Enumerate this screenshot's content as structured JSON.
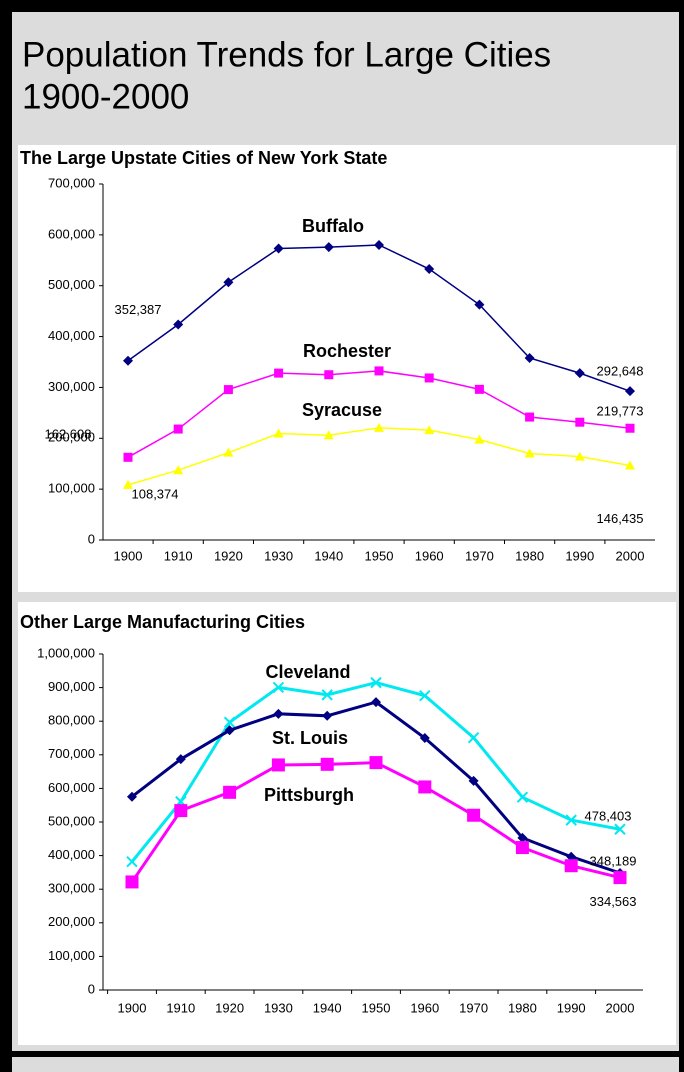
{
  "title_lines": [
    "Population Trends for Large Cities",
    "1900-2000"
  ],
  "chart_data": [
    {
      "type": "line",
      "title": "The Large Upstate Cities of New York State",
      "categories": [
        "1900",
        "1910",
        "1920",
        "1930",
        "1940",
        "1950",
        "1960",
        "1970",
        "1980",
        "1990",
        "2000"
      ],
      "ylim": [
        0,
        700000
      ],
      "yticks": [
        0,
        {
          "value": 100000,
          "label": "100,000"
        },
        {
          "value": 200000,
          "label": "200,000"
        },
        {
          "value": 300000,
          "label": "300,000"
        },
        {
          "value": 400000,
          "label": "400,000"
        },
        {
          "value": 500000,
          "label": "500,000"
        },
        {
          "value": 600000,
          "label": "600,000"
        },
        {
          "value": 700000,
          "label": "700,000"
        }
      ],
      "series": [
        {
          "name": "Buffalo",
          "color": "#000080",
          "marker": "diamond",
          "values": [
            352387,
            423715,
            506775,
            573076,
            575901,
            580132,
            532759,
            462768,
            357870,
            328123,
            292648
          ],
          "value_labels": [
            "352,387",
            null,
            null,
            null,
            null,
            null,
            null,
            null,
            null,
            null,
            "292,648"
          ]
        },
        {
          "name": "Rochester",
          "color": "#ff00ff",
          "marker": "square",
          "values": [
            162608,
            218149,
            295750,
            328132,
            324975,
            332488,
            318611,
            296233,
            241741,
            231636,
            219773
          ],
          "value_labels": [
            "162,608",
            null,
            null,
            null,
            null,
            null,
            null,
            null,
            null,
            null,
            "219,773"
          ]
        },
        {
          "name": "Syracuse",
          "color": "#ffff00",
          "marker": "triangle",
          "values": [
            108374,
            137249,
            171717,
            209326,
            205967,
            220583,
            216038,
            197297,
            170105,
            163860,
            146435
          ],
          "value_labels": [
            "108,374",
            null,
            null,
            null,
            null,
            null,
            null,
            null,
            null,
            null,
            "146,435"
          ]
        }
      ]
    },
    {
      "type": "line",
      "title": "Other Large Manufacturing Cities",
      "categories": [
        "1900",
        "1910",
        "1920",
        "1930",
        "1940",
        "1950",
        "1960",
        "1970",
        "1980",
        "1990",
        "2000"
      ],
      "ylim": [
        0,
        1000000
      ],
      "yticks": [
        0,
        {
          "value": 100000,
          "label": "100,000"
        },
        {
          "value": 200000,
          "label": "200,000"
        },
        {
          "value": 300000,
          "label": "300,000"
        },
        {
          "value": 400000,
          "label": "400,000"
        },
        {
          "value": 500000,
          "label": "500,000"
        },
        {
          "value": 600000,
          "label": "600,000"
        },
        {
          "value": 700000,
          "label": "700,000"
        },
        {
          "value": 800000,
          "label": "800,000"
        },
        {
          "value": 900000,
          "label": "900,000"
        },
        {
          "value": 1000000,
          "label": "1,000,000"
        }
      ],
      "series": [
        {
          "name": "Cleveland",
          "color": "#00e8f0",
          "marker": "x",
          "values": [
            381768,
            560663,
            796841,
            900429,
            878336,
            914808,
            876050,
            750903,
            573822,
            505616,
            478403
          ],
          "value_labels": [
            null,
            null,
            null,
            null,
            null,
            null,
            null,
            null,
            null,
            null,
            "478,403"
          ]
        },
        {
          "name": "St. Louis",
          "color": "#000080",
          "marker": "diamond",
          "values": [
            575238,
            687029,
            772897,
            821960,
            816048,
            856796,
            750026,
            622236,
            452801,
            396685,
            348189
          ],
          "value_labels": [
            null,
            null,
            null,
            null,
            null,
            null,
            null,
            null,
            null,
            null,
            "348,189"
          ]
        },
        {
          "name": "Pittsburgh",
          "color": "#ff00ff",
          "marker": "bigsquare",
          "values": [
            321616,
            533905,
            588343,
            669817,
            671659,
            676806,
            604332,
            520117,
            423938,
            369879,
            334563
          ],
          "value_labels": [
            null,
            null,
            null,
            null,
            null,
            null,
            null,
            null,
            null,
            null,
            "334,563"
          ]
        }
      ]
    }
  ]
}
